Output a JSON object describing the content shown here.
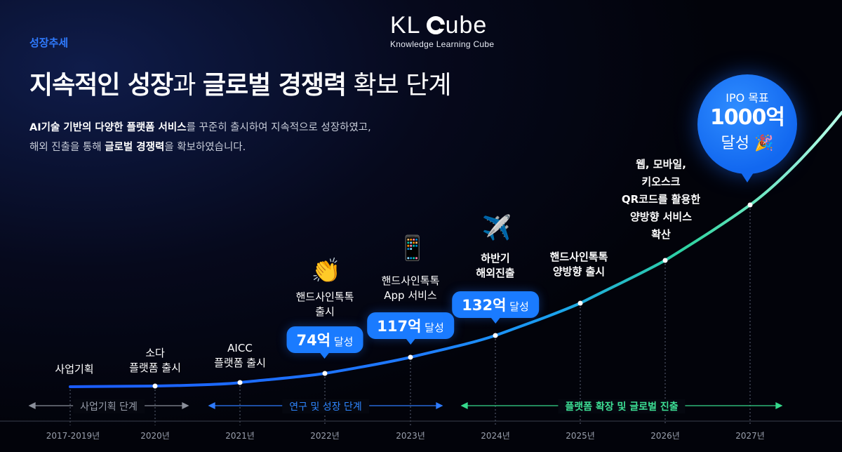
{
  "header": {
    "section_tag": "성장추세",
    "logo_kl": "KL",
    "logo_ube": "ube",
    "logo_subtitle": "Knowledge Learning Cube",
    "headline_1": "지속적인 성장",
    "headline_2": "과 ",
    "headline_3": "글로벌 경쟁력",
    "headline_4": " 확보 단계",
    "desc_line1_bold": "AI기술 기반의 다양한 플랫폼 서비스",
    "desc_line1_rest": "를 꾸준히 출시하여 지속적으로 성장하였고,",
    "desc_line2_a": "해외 진출을 통해 ",
    "desc_line2_bold": "글로벌 경쟁력",
    "desc_line2_rest": "을 확보하였습니다."
  },
  "timeline": {
    "years": [
      "2017-2019년",
      "2020년",
      "2021년",
      "2022년",
      "2023년",
      "2024년",
      "2025년",
      "2026년",
      "2027년"
    ],
    "milestones": {
      "m0": "사업기획",
      "m1_l1": "소다",
      "m1_l2": "플랫폼 출시",
      "m2_l1": "AICC",
      "m2_l2": "플랫폼 출시",
      "m3_l1": "핸드사인톡톡",
      "m3_l2": "출시",
      "m4_l1": "핸드사인톡톡",
      "m4_l2": "App 서비스",
      "m5_l1": "하반기",
      "m5_l2": "해외진출",
      "m6_l1": "핸드사인톡톡",
      "m6_l2": "양방향 출시",
      "m7_l1": "웹, 모바일,",
      "m7_l2": "키오스크",
      "m7_l3": "QR코드를 활용한",
      "m7_l4": "양방향 서비스",
      "m7_l5": "확산"
    },
    "emojis": {
      "clap": "👏",
      "phone": "📱",
      "plane": "✈️",
      "party": "🎉"
    },
    "revenue_badges": [
      {
        "value": "74억",
        "suffix": " 달성"
      },
      {
        "value": "117억",
        "suffix": " 달성"
      },
      {
        "value": "132억",
        "suffix": " 달성"
      }
    ],
    "ipo": {
      "top": "IPO 목표",
      "value": "1000억",
      "bottom": "달성"
    },
    "phases": {
      "p1": "사업기획 단계",
      "p2": "연구 및 성장 단계",
      "p3": "플랫폼 확장 및 글로벌 진출"
    }
  },
  "colors": {
    "accent_blue": "#1a7bff",
    "accent_green": "#3ddf95",
    "muted_gray": "#9aa0ad"
  }
}
